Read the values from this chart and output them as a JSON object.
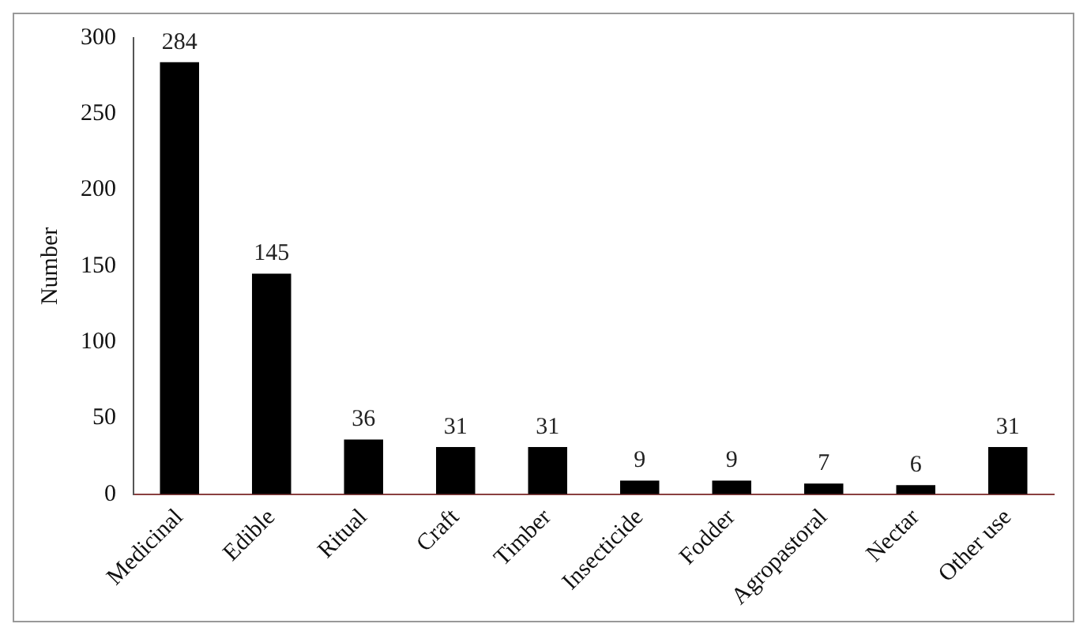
{
  "chart_data": {
    "type": "bar",
    "ylabel": "Number",
    "categories": [
      "Medicinal",
      "Edible",
      "Ritual",
      "Craft",
      "Timber",
      "Insecticide",
      "Fodder",
      "Agropastoral",
      "Nectar",
      "Other use"
    ],
    "values": [
      284,
      145,
      36,
      31,
      31,
      9,
      9,
      7,
      6,
      31
    ],
    "color": "#000000",
    "ylim": [
      0,
      300
    ],
    "yticks": [
      0,
      50,
      100,
      150,
      200,
      250,
      300
    ],
    "grid": false,
    "data_labels": true
  }
}
